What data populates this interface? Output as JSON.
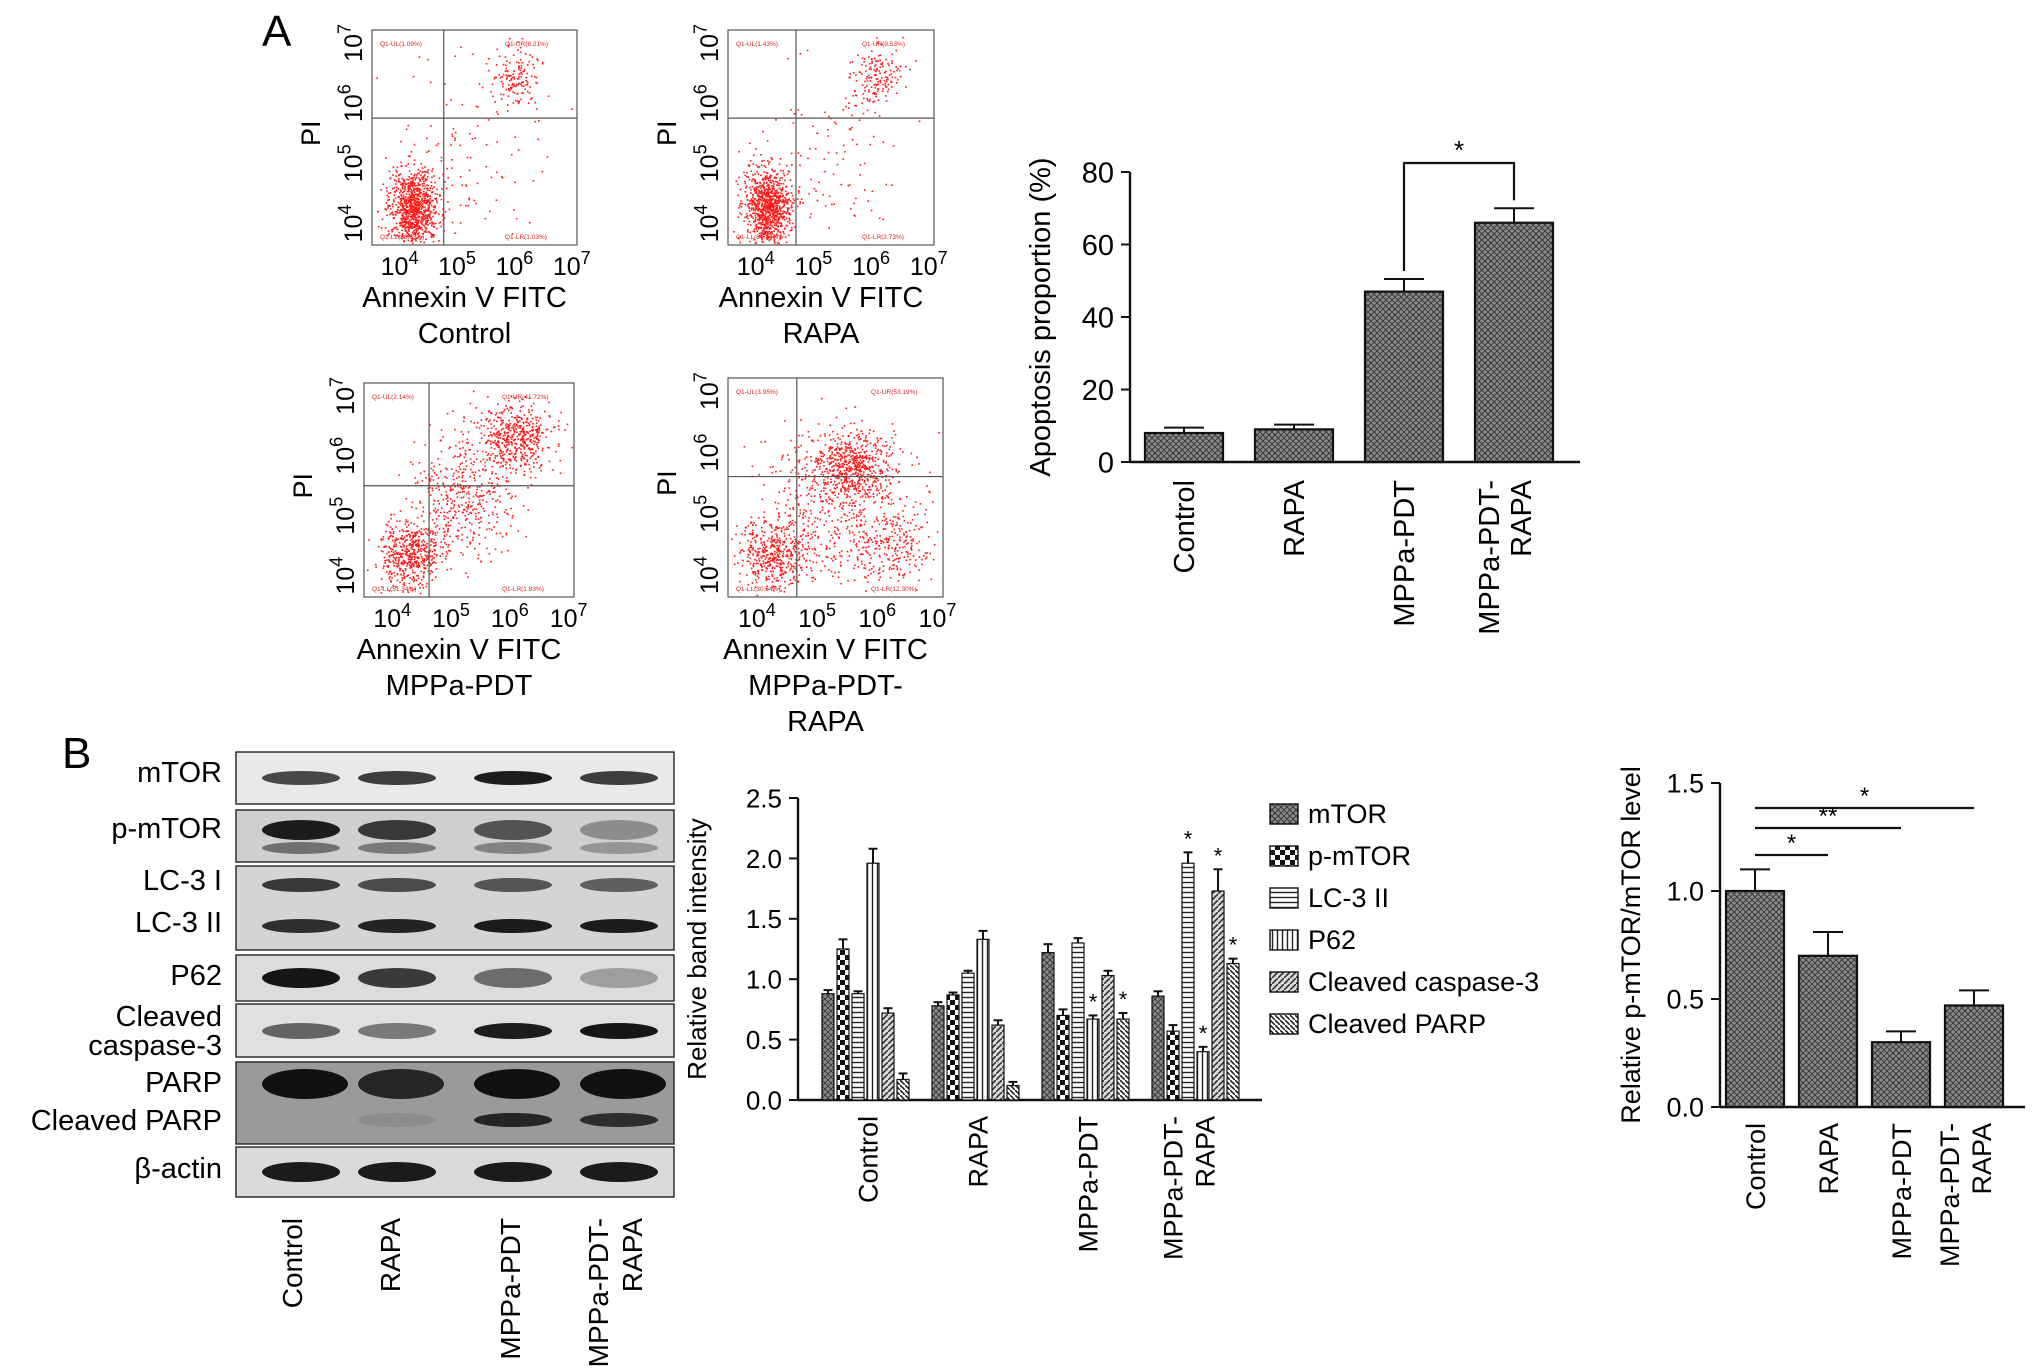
{
  "panel_labels": {
    "a": "A",
    "b": "B"
  },
  "flow": {
    "y_axis_label": "PI",
    "x_axis_label": "Annexin V FITC",
    "x_ticks": [
      "10^4",
      "10^5",
      "10^6",
      "10^7"
    ],
    "y_ticks": [
      "10^4",
      "10^5",
      "10^6",
      "10^7"
    ],
    "point_color": "#ff1a1a",
    "plots": [
      {
        "group": "Control",
        "q1": "Q1-UL(1.09%)",
        "q2": "Q1-UR(8.21%)",
        "q3": "Q1-LL(88.63%)",
        "q4": "Q1-LR(1.03%)"
      },
      {
        "group": "RAPA",
        "q1": "Q1-UL(1.43%)",
        "q2": "Q1-UR(8.53%)",
        "q3": "Q1-LL(87.24%)",
        "q4": "Q1-LR(2.73%)"
      },
      {
        "group": "MPPa-PDT",
        "q1": "Q1-UL(2.14%)",
        "q2": "Q1-UR(41.72%)",
        "q3": "Q1-LL(51.34%)",
        "q4": "Q1-LR(1.93%)"
      },
      {
        "group": "MPPa-PDT-RAPA",
        "q1": "Q1-UL(3.95%)",
        "q2": "Q1-UR(53.19%)",
        "q3": "Q1-LL(30.54%)",
        "q4": "Q1-LR(12.30%)"
      }
    ]
  },
  "blot": {
    "row_labels": [
      "mTOR",
      "p-mTOR",
      "LC-3 I",
      "LC-3 II",
      "P62",
      "Cleaved",
      "caspase-3",
      "PARP",
      "Cleaved PARP",
      "β-actin"
    ],
    "lanes": [
      "Control",
      "RAPA",
      "MPPa-PDT",
      "MPPa-PDT-RAPA"
    ]
  },
  "chart_data": [
    {
      "type": "bar",
      "categories": [
        "Control",
        "RAPA",
        "MPPa-PDT",
        "MPPa-PDT-RAPA"
      ],
      "values": [
        8,
        9,
        47,
        66
      ],
      "errors": [
        1.5,
        1.3,
        3.5,
        4
      ],
      "ylabel": "Apoptosis proportion (%)",
      "ylim": [
        0,
        80
      ],
      "yticks": [
        0,
        20,
        40,
        60,
        80
      ],
      "significance": [
        {
          "from": "MPPa-PDT",
          "to": "MPPa-PDT-RAPA",
          "label": "*"
        }
      ]
    },
    {
      "type": "bar",
      "categories": [
        "Control",
        "RAPA",
        "MPPa-PDT",
        "MPPa-PDT-RAPA"
      ],
      "ylabel": "Relative band intensity",
      "ylim": [
        0,
        2.5
      ],
      "yticks": [
        "0.0",
        "0.5",
        "1.0",
        "1.5",
        "2.0",
        "2.5"
      ],
      "legend_position": "right",
      "series": [
        {
          "name": "mTOR",
          "values": [
            0.88,
            0.78,
            1.22,
            0.86
          ],
          "errors": [
            0.03,
            0.03,
            0.07,
            0.04
          ],
          "sig": [
            "",
            "",
            "",
            ""
          ]
        },
        {
          "name": "p-mTOR",
          "values": [
            1.25,
            0.87,
            0.7,
            0.57
          ],
          "errors": [
            0.08,
            0.02,
            0.05,
            0.05
          ],
          "sig": [
            "",
            "",
            "",
            ""
          ]
        },
        {
          "name": "LC-3 II",
          "values": [
            0.88,
            1.05,
            1.3,
            1.96
          ],
          "errors": [
            0.02,
            0.02,
            0.04,
            0.09
          ],
          "sig": [
            "",
            "",
            "",
            "*"
          ]
        },
        {
          "name": "P62",
          "values": [
            1.96,
            1.33,
            0.67,
            0.4
          ],
          "errors": [
            0.12,
            0.07,
            0.03,
            0.04
          ],
          "sig": [
            "",
            "",
            "*",
            "*"
          ]
        },
        {
          "name": "Cleaved caspase-3",
          "values": [
            0.72,
            0.62,
            1.03,
            1.73
          ],
          "errors": [
            0.04,
            0.04,
            0.04,
            0.18
          ],
          "sig": [
            "",
            "",
            "",
            "*"
          ]
        },
        {
          "name": "Cleaved PARP",
          "values": [
            0.17,
            0.12,
            0.67,
            1.13
          ],
          "errors": [
            0.05,
            0.03,
            0.05,
            0.04
          ],
          "sig": [
            "",
            "",
            "*",
            "*"
          ]
        }
      ]
    },
    {
      "type": "bar",
      "categories": [
        "Control",
        "RAPA",
        "MPPa-PDT",
        "MPPa-PDT-RAPA"
      ],
      "values": [
        1.0,
        0.7,
        0.3,
        0.47
      ],
      "errors": [
        0.1,
        0.11,
        0.05,
        0.07
      ],
      "ylabel": "Relative p-mTOR/mTOR level",
      "ylim": [
        0,
        1.5
      ],
      "yticks": [
        "0.0",
        "0.5",
        "1.0",
        "1.5"
      ],
      "significance": [
        {
          "from": "Control",
          "to": "RAPA",
          "label": "*"
        },
        {
          "from": "Control",
          "to": "MPPa-PDT",
          "label": "**"
        },
        {
          "from": "Control",
          "to": "MPPa-PDT-RAPA",
          "label": "*"
        }
      ]
    }
  ]
}
